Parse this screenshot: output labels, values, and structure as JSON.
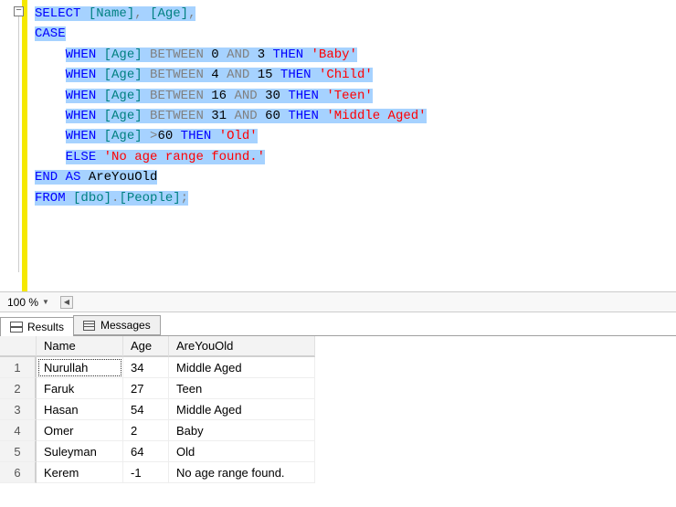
{
  "sql": {
    "keywords": {
      "select": "SELECT",
      "case": "CASE",
      "when": "WHEN",
      "between": "BETWEEN",
      "and": "AND",
      "then": "THEN",
      "else": "ELSE",
      "end": "END",
      "as": "AS",
      "from": "FROM"
    },
    "cols": {
      "name": "[Name]",
      "age": "[Age]"
    },
    "nums": {
      "n0": "0",
      "n3": "3",
      "n4": "4",
      "n15": "15",
      "n16": "16",
      "n30": "30",
      "n31": "31",
      "n60": "60",
      "gt60": "60"
    },
    "strs": {
      "baby": "'Baby'",
      "child": "'Child'",
      "teen": "'Teen'",
      "mid": "'Middle Aged'",
      "old": "'Old'",
      "none": "'No age range found.'"
    },
    "alias": "AreYouOld",
    "table": {
      "schema": "[dbo]",
      "name": "[People]"
    },
    "ops": {
      "gt": ">",
      "comma": ",",
      "dot": ".",
      "semi": ";"
    },
    "colors": {
      "keyword": "#0000ff",
      "bracket": "#008080",
      "operator": "#808080",
      "string": "#ff0000",
      "number": "#000000",
      "highlight": "#a6d2ff"
    }
  },
  "zoom": {
    "value": "100 %"
  },
  "tabs": {
    "results": "Results",
    "messages": "Messages"
  },
  "grid": {
    "headers": {
      "name": "Name",
      "age": "Age",
      "old": "AreYouOld"
    },
    "rows": [
      {
        "n": "1",
        "name": "Nurullah",
        "age": "34",
        "old": "Middle Aged"
      },
      {
        "n": "2",
        "name": "Faruk",
        "age": "27",
        "old": "Teen"
      },
      {
        "n": "3",
        "name": "Hasan",
        "age": "54",
        "old": "Middle Aged"
      },
      {
        "n": "4",
        "name": "Omer",
        "age": "2",
        "old": "Baby"
      },
      {
        "n": "5",
        "name": "Suleyman",
        "age": "64",
        "old": "Old"
      },
      {
        "n": "6",
        "name": "Kerem",
        "age": "-1",
        "old": "No age range found."
      }
    ]
  }
}
